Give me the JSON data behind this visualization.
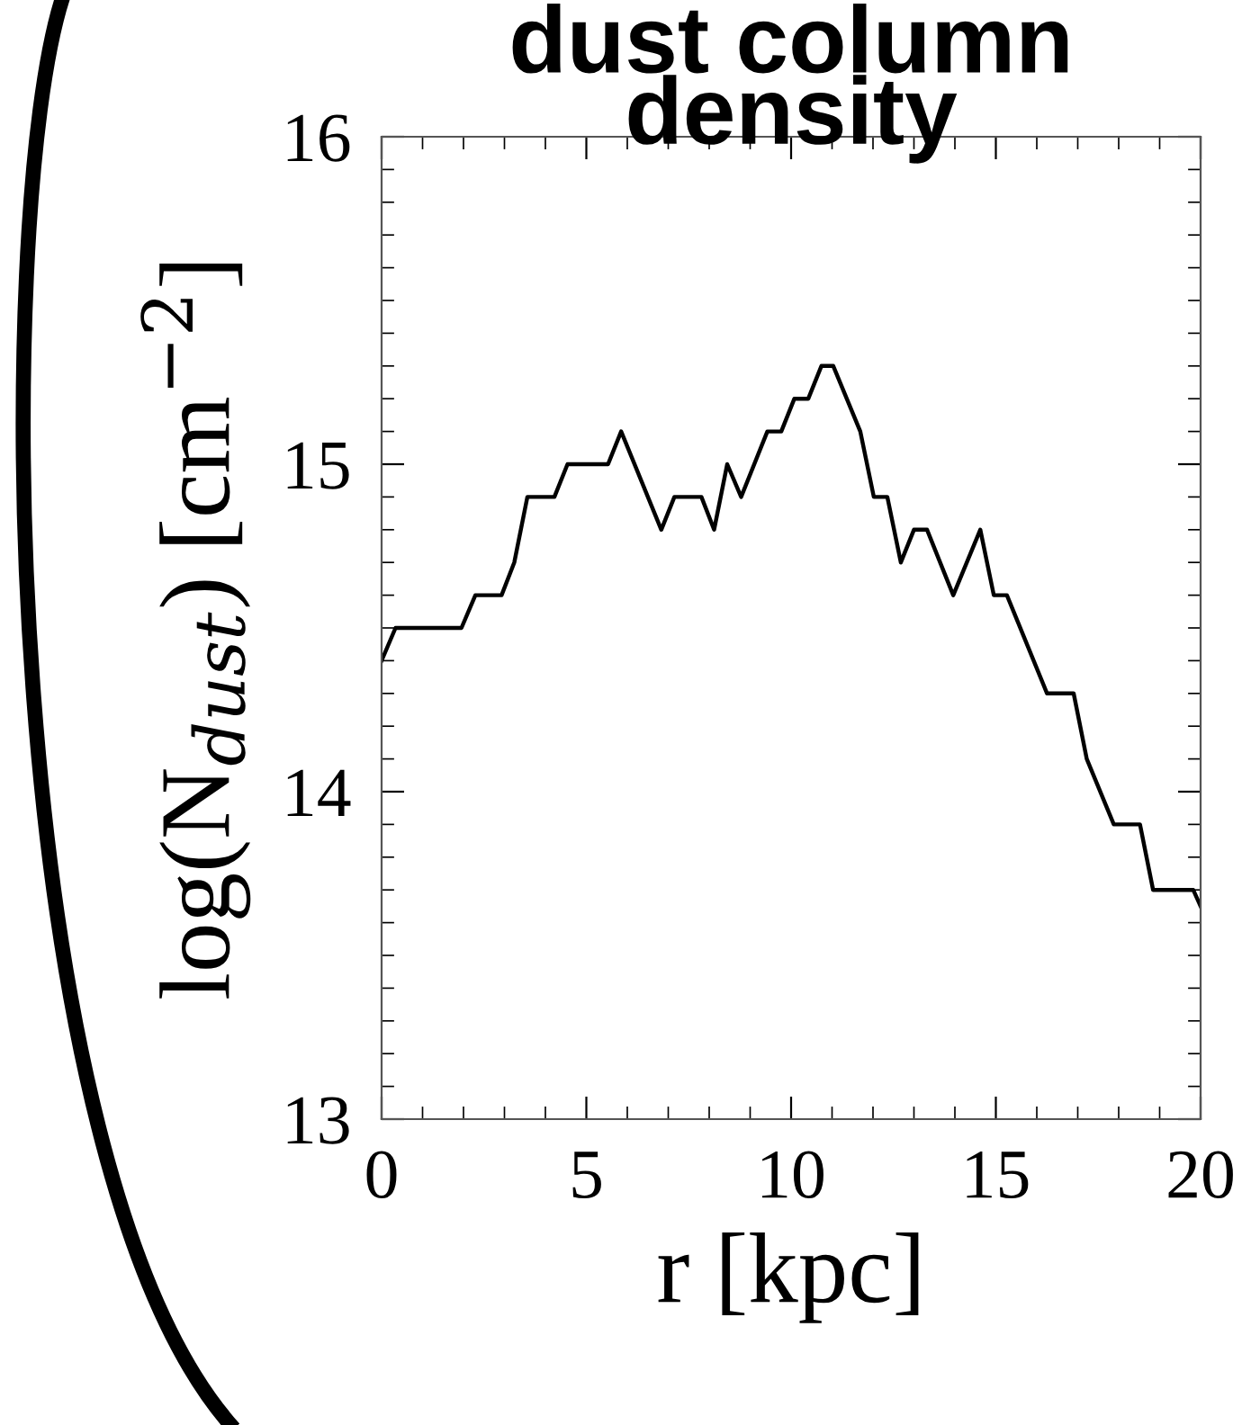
{
  "chart_data": {
    "type": "line",
    "title": "dust column\ndensity",
    "xlabel": "r [kpc]",
    "ylabel": "log(N$_{dust}$) [cm$^{−2}$]",
    "x": [
      0,
      0.34,
      1.95,
      2.29,
      2.93,
      3.24,
      3.56,
      4.22,
      4.54,
      5.53,
      5.85,
      6.83,
      7.15,
      7.81,
      8.12,
      8.44,
      8.78,
      9.42,
      9.76,
      10.08,
      10.42,
      10.74,
      11.03,
      11.69,
      12.02,
      12.35,
      12.68,
      13.0,
      13.32,
      13.96,
      14.62,
      14.95,
      15.27,
      16.25,
      16.9,
      17.22,
      17.88,
      18.52,
      18.84,
      19.82,
      20.0
    ],
    "series": [
      {
        "color": "#000000",
        "values": [
          14.4,
          14.5,
          14.5,
          14.6,
          14.6,
          14.7,
          14.9,
          14.9,
          15.0,
          15.0,
          15.1,
          14.8,
          14.9,
          14.9,
          14.8,
          15.0,
          14.9,
          15.1,
          15.1,
          15.2,
          15.2,
          15.3,
          15.3,
          15.1,
          14.9,
          14.9,
          14.7,
          14.8,
          14.8,
          14.6,
          14.8,
          14.6,
          14.6,
          14.3,
          14.3,
          14.1,
          13.9,
          13.9,
          13.7,
          13.7,
          13.65
        ]
      }
    ],
    "xlim": [
      0,
      20
    ],
    "ylim": [
      13,
      16
    ],
    "xticks": [
      0,
      5,
      10,
      15,
      20
    ],
    "yticks": [
      13,
      14,
      15,
      16
    ],
    "grid": false,
    "legend": false,
    "marker": "none",
    "line_style": "solid"
  }
}
